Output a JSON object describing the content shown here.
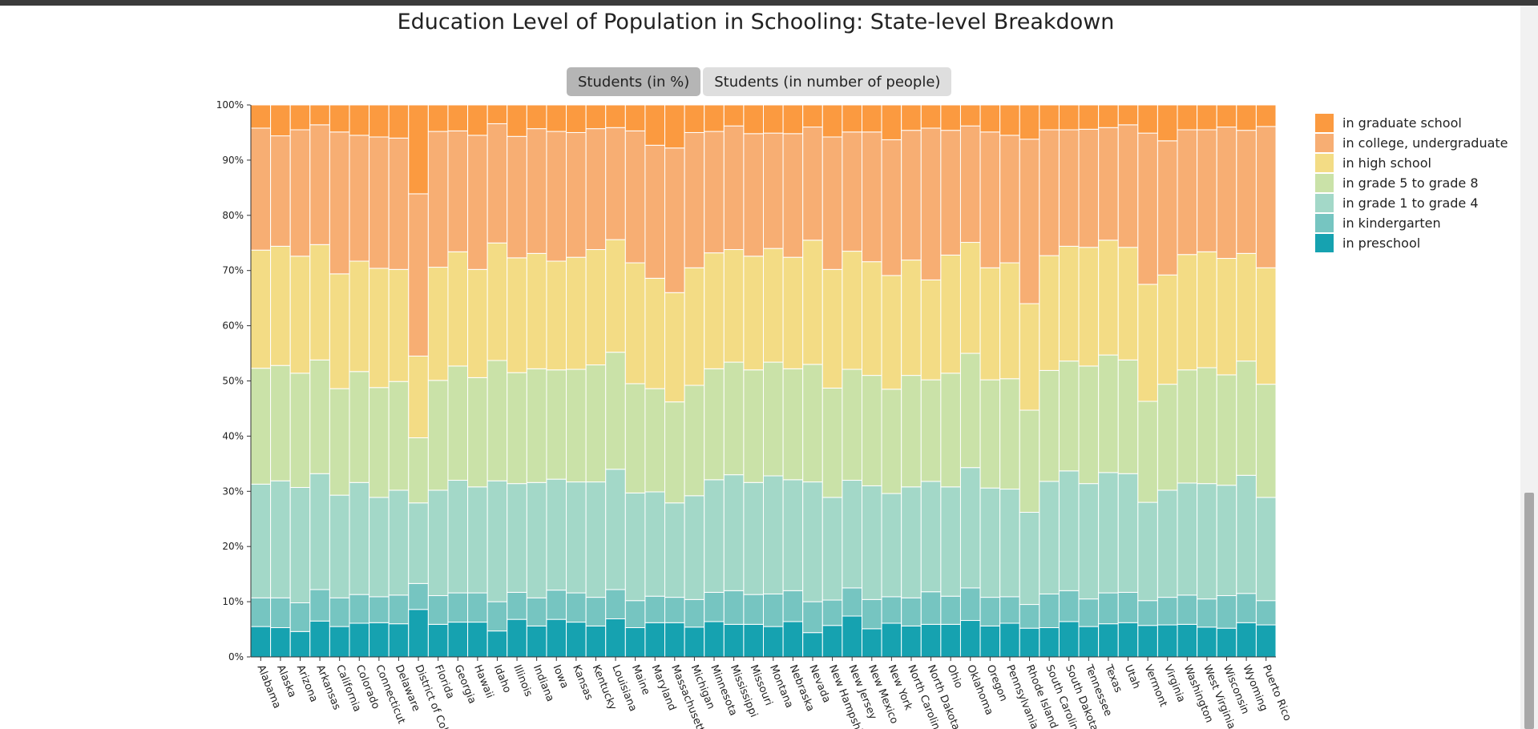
{
  "page": {
    "title": "Education Level of Population in Schooling: State-level Breakdown",
    "toggle": {
      "percent_label": "Students (in %)",
      "count_label": "Students (in number of people)"
    }
  },
  "chart_data": {
    "type": "bar",
    "stacked": true,
    "normalized": true,
    "title": "Education Level of Population in Schooling: State-level Breakdown",
    "xlabel": "",
    "ylabel": "",
    "ylim": [
      0,
      100
    ],
    "yticks": [
      "0%",
      "10%",
      "20%",
      "30%",
      "40%",
      "50%",
      "60%",
      "70%",
      "80%",
      "90%",
      "100%"
    ],
    "legend_position": "right",
    "categories": [
      "Alabama",
      "Alaska",
      "Arizona",
      "Arkansas",
      "California",
      "Colorado",
      "Connecticut",
      "Delaware",
      "District of Columbia",
      "Florida",
      "Georgia",
      "Hawaii",
      "Idaho",
      "Illinois",
      "Indiana",
      "Iowa",
      "Kansas",
      "Kentucky",
      "Louisiana",
      "Maine",
      "Maryland",
      "Massachusetts",
      "Michigan",
      "Minnesota",
      "Mississippi",
      "Missouri",
      "Montana",
      "Nebraska",
      "Nevada",
      "New Hampshire",
      "New Jersey",
      "New Mexico",
      "New York",
      "North Carolina",
      "North Dakota",
      "Ohio",
      "Oklahoma",
      "Oregon",
      "Pennsylvania",
      "Rhode Island",
      "South Carolina",
      "South Dakota",
      "Tennessee",
      "Texas",
      "Utah",
      "Vermont",
      "Virginia",
      "Washington",
      "West Virginia",
      "Wisconsin",
      "Wyoming",
      "Puerto Rico"
    ],
    "series": [
      {
        "name": "in preschool",
        "color": "#16a2b0",
        "values": [
          5.5,
          5.3,
          4.6,
          6.5,
          5.5,
          6.1,
          6.2,
          6.0,
          8.6,
          5.9,
          6.3,
          6.3,
          4.7,
          6.8,
          5.6,
          6.8,
          6.3,
          5.6,
          6.9,
          5.3,
          6.2,
          6.2,
          5.4,
          6.4,
          5.9,
          5.9,
          5.5,
          6.4,
          4.4,
          5.7,
          7.4,
          5.1,
          6.1,
          5.6,
          5.9,
          5.9,
          6.6,
          5.6,
          6.1,
          5.2,
          5.3,
          6.4,
          5.5,
          6.0,
          6.2,
          5.7,
          5.8,
          5.9,
          5.4,
          5.2,
          6.2,
          5.8
        ]
      },
      {
        "name": "in kindergarten",
        "color": "#76c5c1",
        "values": [
          5.2,
          5.4,
          5.2,
          5.7,
          5.2,
          5.2,
          4.7,
          5.2,
          4.7,
          5.2,
          5.3,
          5.3,
          5.3,
          4.9,
          5.1,
          5.3,
          5.3,
          5.2,
          5.3,
          4.9,
          4.8,
          4.6,
          5.0,
          5.3,
          6.1,
          5.4,
          5.9,
          5.6,
          5.6,
          4.6,
          5.1,
          5.3,
          4.8,
          5.1,
          5.9,
          5.1,
          5.9,
          5.2,
          4.8,
          4.3,
          6.1,
          5.6,
          5.0,
          5.6,
          5.5,
          4.5,
          5.0,
          5.3,
          5.1,
          5.9,
          5.3,
          4.4
        ]
      },
      {
        "name": "in grade 1 to grade 4",
        "color": "#a3d8c8",
        "values": [
          20.6,
          21.2,
          20.9,
          21.0,
          18.6,
          20.3,
          18.0,
          19.0,
          14.6,
          19.1,
          20.4,
          19.2,
          21.9,
          19.7,
          20.9,
          20.1,
          20.1,
          20.9,
          21.8,
          19.5,
          18.9,
          17.1,
          18.8,
          20.4,
          21.0,
          20.3,
          21.4,
          20.1,
          21.7,
          18.6,
          19.5,
          20.6,
          18.7,
          20.1,
          20.0,
          19.8,
          21.8,
          19.8,
          19.5,
          16.7,
          20.4,
          21.7,
          20.9,
          21.8,
          21.5,
          17.8,
          19.4,
          20.3,
          20.9,
          20.0,
          21.4,
          18.7
        ]
      },
      {
        "name": "in grade 5 to grade 8",
        "color": "#cae2a8",
        "values": [
          21.0,
          20.9,
          20.7,
          20.6,
          19.3,
          20.1,
          19.9,
          19.7,
          11.8,
          19.9,
          20.7,
          19.8,
          21.8,
          20.1,
          20.6,
          19.8,
          20.4,
          21.2,
          21.2,
          19.8,
          18.7,
          18.3,
          20.0,
          20.1,
          20.4,
          20.4,
          20.6,
          20.1,
          21.3,
          19.8,
          20.1,
          20.0,
          18.9,
          20.2,
          18.4,
          20.6,
          20.7,
          19.6,
          20.0,
          18.5,
          20.1,
          19.9,
          21.3,
          21.3,
          20.6,
          18.3,
          19.2,
          20.5,
          21.0,
          20.0,
          20.7,
          20.5
        ]
      },
      {
        "name": "in high school",
        "color": "#f3dc85",
        "values": [
          21.4,
          21.6,
          21.2,
          20.9,
          20.8,
          20.0,
          21.6,
          20.3,
          14.8,
          20.5,
          20.7,
          19.6,
          21.3,
          20.8,
          20.9,
          19.7,
          20.3,
          20.9,
          20.4,
          21.9,
          20.0,
          19.8,
          21.3,
          21.0,
          20.4,
          20.6,
          20.6,
          20.2,
          22.5,
          21.5,
          21.4,
          20.6,
          20.6,
          20.9,
          18.1,
          21.4,
          20.1,
          20.3,
          21.0,
          19.3,
          20.8,
          20.8,
          21.5,
          20.8,
          20.4,
          21.2,
          19.8,
          20.9,
          21.0,
          21.1,
          19.5,
          21.1
        ]
      },
      {
        "name": "in college, undergraduate",
        "color": "#f7ae73",
        "values": [
          22.1,
          20.0,
          22.9,
          21.7,
          25.7,
          22.8,
          23.8,
          23.8,
          29.4,
          24.6,
          21.9,
          24.3,
          21.6,
          22.0,
          22.6,
          23.5,
          22.6,
          21.9,
          20.3,
          23.9,
          24.1,
          26.2,
          24.5,
          22.0,
          22.4,
          22.2,
          20.9,
          22.4,
          20.5,
          24.0,
          21.6,
          23.5,
          24.6,
          23.5,
          27.5,
          22.6,
          21.1,
          24.6,
          23.1,
          29.8,
          22.8,
          21.1,
          21.4,
          20.4,
          22.2,
          27.4,
          24.3,
          22.6,
          22.1,
          23.8,
          22.3,
          25.6
        ]
      },
      {
        "name": "in graduate school",
        "color": "#fb9a40",
        "values": [
          4.2,
          5.6,
          4.5,
          3.6,
          4.9,
          5.5,
          5.8,
          6.0,
          16.1,
          4.8,
          4.7,
          5.5,
          3.4,
          5.7,
          4.3,
          4.8,
          5.0,
          4.3,
          4.1,
          4.7,
          7.3,
          7.8,
          5.0,
          4.8,
          3.8,
          5.2,
          5.1,
          5.2,
          4.0,
          5.8,
          4.9,
          4.9,
          6.3,
          4.6,
          4.2,
          4.6,
          3.8,
          4.9,
          5.5,
          6.2,
          4.5,
          4.5,
          4.4,
          4.1,
          3.6,
          5.1,
          6.5,
          4.5,
          4.5,
          4.0,
          4.6,
          3.9
        ]
      }
    ]
  }
}
